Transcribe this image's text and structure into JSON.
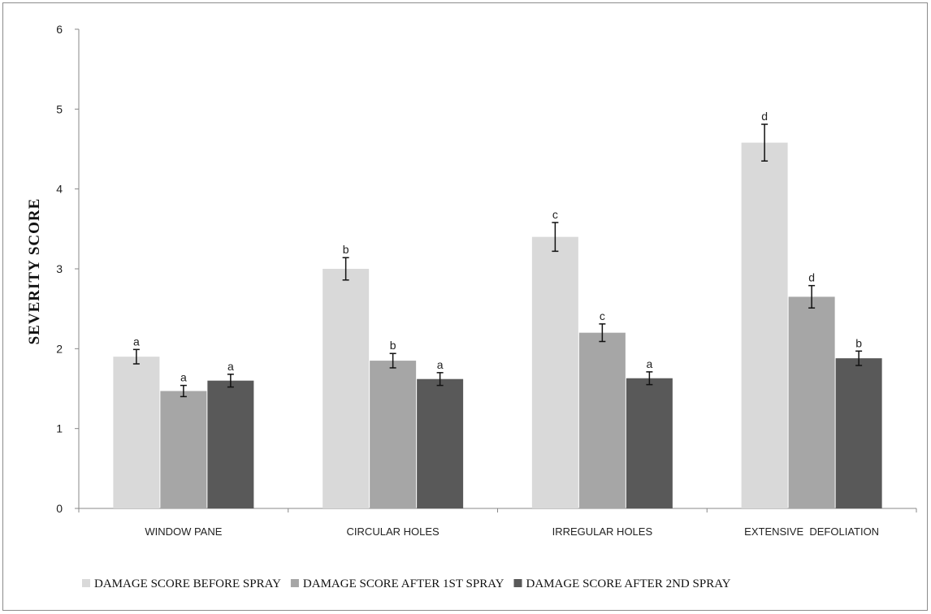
{
  "chart_data": {
    "type": "bar",
    "title": "",
    "xlabel": "",
    "ylabel": "SEVERITY SCORE",
    "ylim": [
      0,
      6
    ],
    "yticks": [
      0,
      1,
      2,
      3,
      4,
      5,
      6
    ],
    "grid": false,
    "legend_position": "bottom",
    "categories": [
      "WINDOW PANE",
      "CIRCULAR HOLES",
      "IRREGULAR HOLES",
      "EXTENSIVE  DEFOLIATION"
    ],
    "series": [
      {
        "name": "DAMAGE SCORE BEFORE SPRAY",
        "color": "#d9d9d9",
        "values": [
          1.9,
          3.0,
          3.4,
          4.58
        ],
        "errors": [
          0.09,
          0.14,
          0.18,
          0.23
        ],
        "labels": [
          "a",
          "b",
          "c",
          "d"
        ]
      },
      {
        "name": "DAMAGE SCORE AFTER 1ST SPRAY",
        "color": "#a6a6a6",
        "values": [
          1.47,
          1.85,
          2.2,
          2.65
        ],
        "errors": [
          0.07,
          0.09,
          0.11,
          0.14
        ],
        "labels": [
          "a",
          "b",
          "c",
          "d"
        ]
      },
      {
        "name": "DAMAGE SCORE AFTER 2ND SPRAY",
        "color": "#595959",
        "values": [
          1.6,
          1.62,
          1.63,
          1.88
        ],
        "errors": [
          0.08,
          0.08,
          0.08,
          0.09
        ],
        "labels": [
          "a",
          "a",
          "a",
          "b"
        ]
      }
    ]
  }
}
